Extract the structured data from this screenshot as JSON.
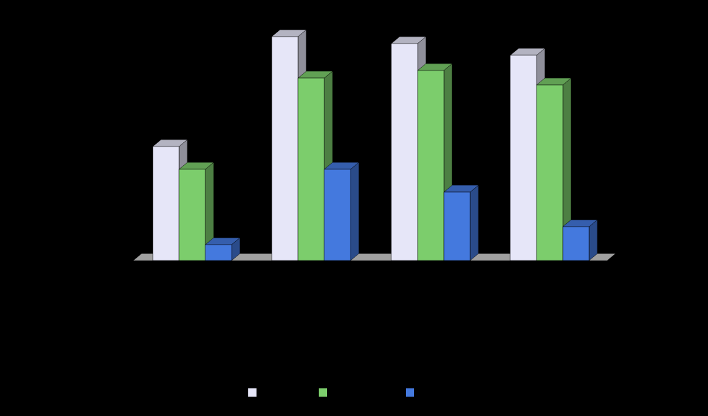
{
  "chart_data": {
    "type": "bar3d",
    "categories": [
      null,
      null,
      null,
      null
    ],
    "series": [
      {
        "color": "#e6e6f8",
        "values": [
          165,
          324,
          314,
          297
        ]
      },
      {
        "color": "#7ccd6c",
        "values": [
          132,
          264,
          275,
          254
        ]
      },
      {
        "color": "#4479de",
        "values": [
          23,
          132,
          99,
          49
        ]
      }
    ],
    "ylim": [
      0,
      324
    ]
  }
}
